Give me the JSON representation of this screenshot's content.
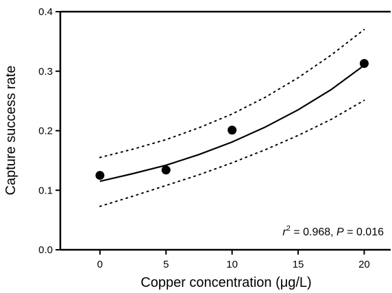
{
  "chart_data": {
    "type": "scatter",
    "xlabel": "Copper concentration (μg/L)",
    "ylabel": "Capture success rate",
    "xlim": [
      -3,
      22
    ],
    "ylim": [
      0,
      0.4
    ],
    "x_ticks": [
      0,
      5,
      10,
      15,
      20
    ],
    "y_ticks": [
      0.0,
      0.1,
      0.2,
      0.3,
      0.4
    ],
    "x_tick_labels": [
      "0",
      "5",
      "10",
      "15",
      "20"
    ],
    "y_tick_labels": [
      "0.0",
      "0.1",
      "0.2",
      "0.3",
      "0.4"
    ],
    "grid": false,
    "series": [
      {
        "kind": "points",
        "x": [
          0,
          5,
          10,
          20
        ],
        "y": [
          0.125,
          0.134,
          0.201,
          0.313
        ]
      },
      {
        "kind": "fit-line",
        "x": [
          0,
          2.5,
          5,
          7.5,
          10,
          12.5,
          15,
          17.5,
          20
        ],
        "y": [
          0.115,
          0.128,
          0.142,
          0.16,
          0.181,
          0.206,
          0.235,
          0.269,
          0.31
        ]
      },
      {
        "kind": "upper-ci",
        "x": [
          0,
          2.5,
          5,
          7.5,
          10,
          12.5,
          15,
          17.5,
          20
        ],
        "y": [
          0.155,
          0.169,
          0.185,
          0.205,
          0.228,
          0.256,
          0.289,
          0.327,
          0.37
        ]
      },
      {
        "kind": "lower-ci",
        "x": [
          0,
          2.5,
          5,
          7.5,
          10,
          12.5,
          15,
          17.5,
          20
        ],
        "y": [
          0.073,
          0.09,
          0.108,
          0.126,
          0.146,
          0.168,
          0.192,
          0.219,
          0.251
        ]
      }
    ],
    "annotation": {
      "r2_symbol": "r",
      "r2_sup": "2",
      "r2_text": " = 0.968, ",
      "p_symbol": "P",
      "p_text": " = 0.016"
    }
  }
}
